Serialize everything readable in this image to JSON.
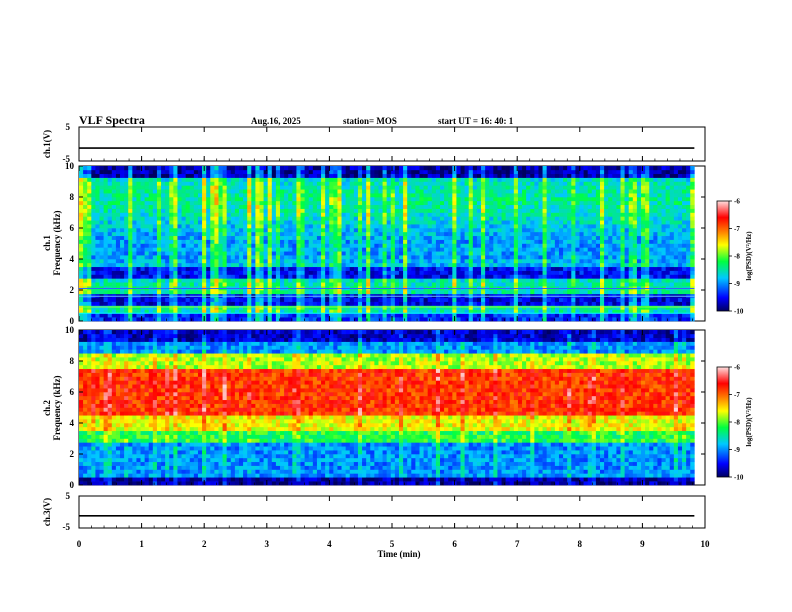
{
  "header": {
    "title": "VLF Spectra",
    "date": "Aug.16, 2025",
    "station": "station= MOS",
    "start": "start  UT =   16: 40: 1"
  },
  "chart_data": [
    {
      "type": "line",
      "name": "ch.1 waveform",
      "ylabel": "ch.1(V)",
      "ylim": [
        -5,
        5
      ],
      "yticks": [
        "5",
        "-5"
      ],
      "xlim": [
        0,
        10
      ],
      "baseline": -1.2
    },
    {
      "type": "heatmap",
      "name": "ch.1 spectrogram",
      "ylabel": "ch.1\nFrequency (kHz)",
      "ylabel_lines": [
        "ch.1",
        "Frequency (kHz)"
      ],
      "ylim": [
        0,
        10
      ],
      "yticks": [
        "0",
        "2",
        "4",
        "6",
        "8",
        "10"
      ],
      "xlim": [
        0,
        10
      ],
      "data_end_min": 9.83,
      "colorbar": {
        "ticks": [
          "-6",
          "-7",
          "-8",
          "-9",
          "-10"
        ],
        "label": "log(PSD)(V²/Hz)",
        "range": [
          -10,
          -6
        ]
      }
    },
    {
      "type": "heatmap",
      "name": "ch.2 spectrogram",
      "ylabel": "ch.2\nFrequency (kHz)",
      "ylabel_lines": [
        "ch.2",
        "Frequency (kHz)"
      ],
      "ylim": [
        0,
        10
      ],
      "yticks": [
        "0",
        "2",
        "4",
        "6",
        "8",
        "10"
      ],
      "xlim": [
        0,
        10
      ],
      "data_end_min": 9.83,
      "colorbar": {
        "ticks": [
          "-6",
          "-7",
          "-8",
          "-9",
          "-10"
        ],
        "label": "log(PSD)(V²/Hz)",
        "range": [
          -10,
          -6
        ]
      }
    },
    {
      "type": "line",
      "name": "ch.3 waveform",
      "ylabel": "ch.3(V)",
      "ylim": [
        -5,
        5
      ],
      "yticks": [
        "5",
        "-5"
      ],
      "xlim": [
        0,
        10
      ],
      "baseline": -1.2
    }
  ],
  "xaxis": {
    "label": "Time  (min)",
    "ticks": [
      "0",
      "1",
      "2",
      "3",
      "4",
      "5",
      "6",
      "7",
      "8",
      "9",
      "10"
    ]
  }
}
